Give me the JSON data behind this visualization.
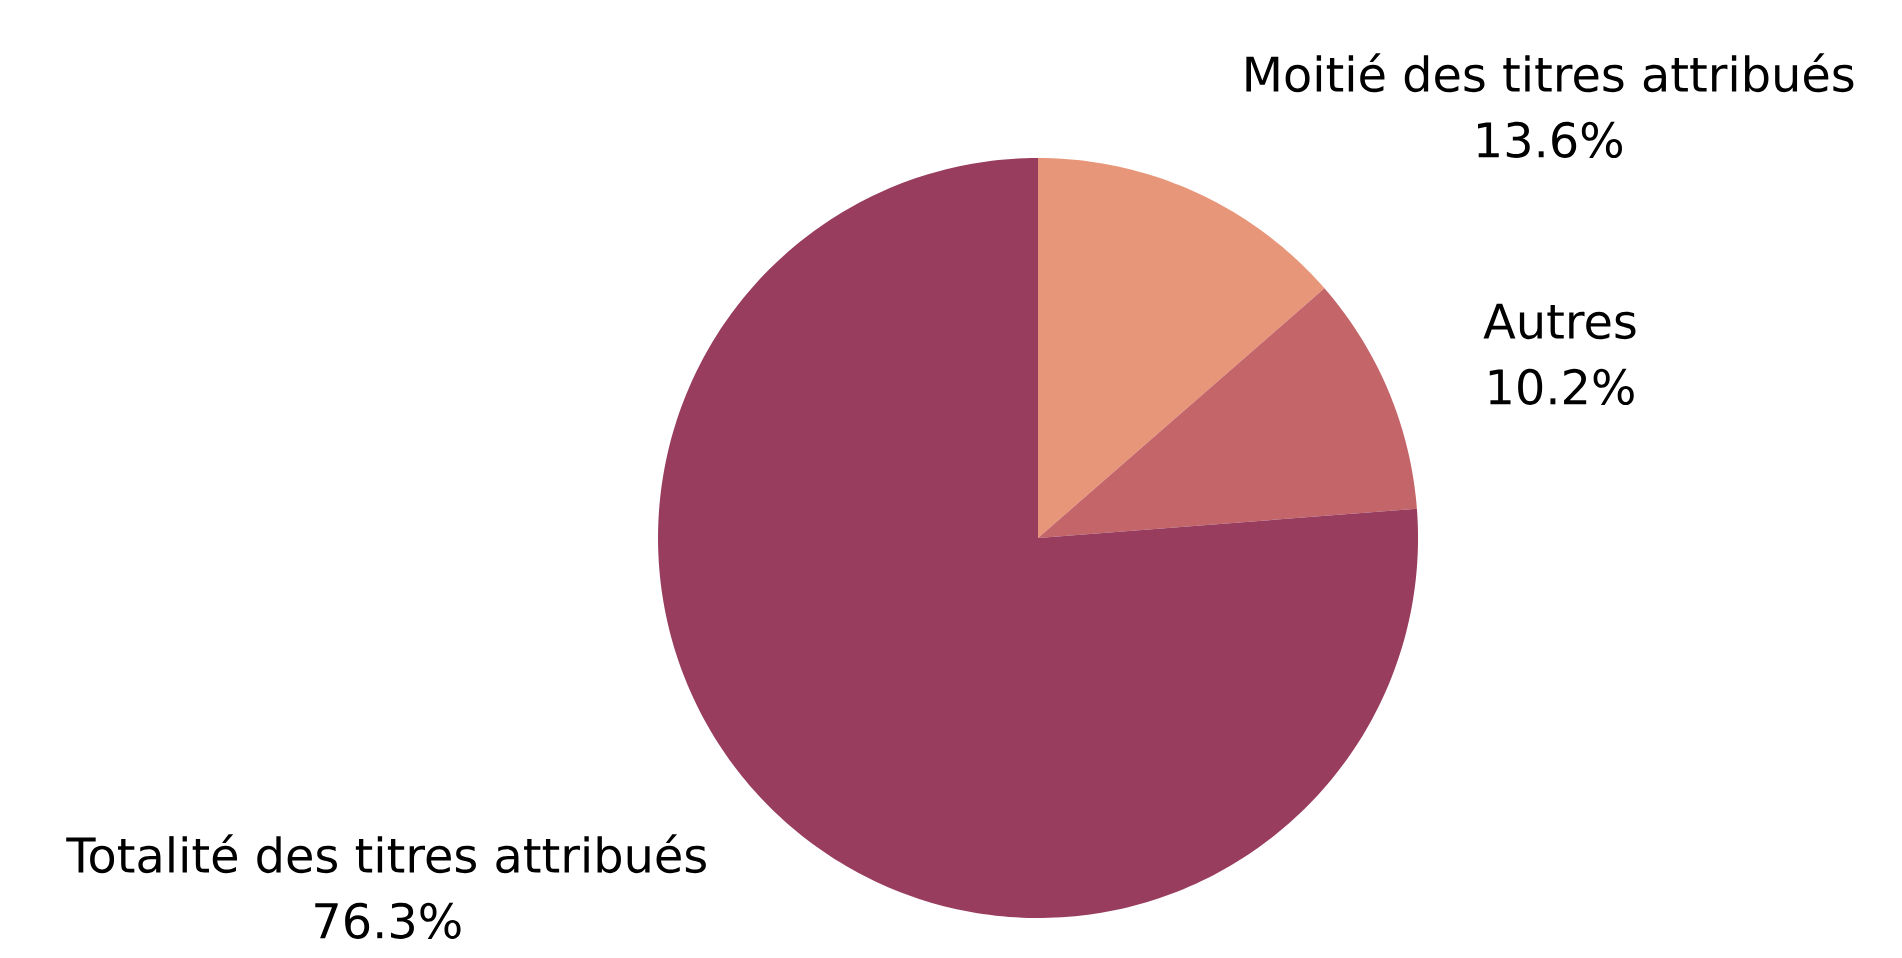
{
  "chart_data": {
    "type": "pie",
    "categories": [
      "Moitié des titres attribués",
      "Autres",
      "Totalité des titres attribués"
    ],
    "values": [
      13.6,
      10.2,
      76.3
    ],
    "value_labels": [
      "13.6%",
      "10.2%",
      "76.3%"
    ],
    "colors": [
      "#e8967a",
      "#c4656a",
      "#993d5f"
    ]
  }
}
